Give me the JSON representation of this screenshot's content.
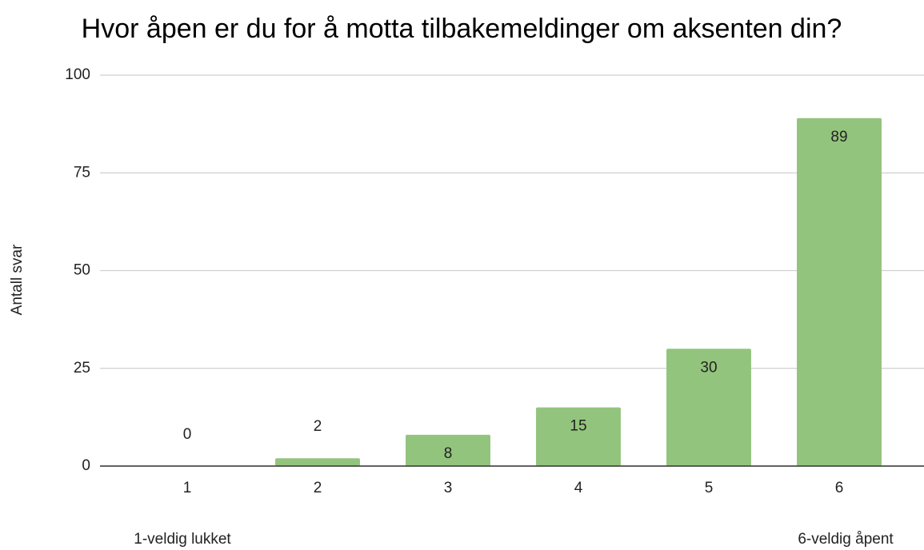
{
  "chart_data": {
    "type": "bar",
    "title": "Hvor åpen er du for å motta tilbakemeldinger om aksenten din?",
    "y_label": "Antall svar",
    "annotations": [
      "1-veldig lukket",
      "6-veldig åpent"
    ],
    "categories": [
      "1",
      "2",
      "3",
      "4",
      "5",
      "6"
    ],
    "values": [
      0,
      2,
      8,
      15,
      30,
      89
    ],
    "color": "#93c47d",
    "ylim": [
      0,
      100
    ],
    "yticks": [
      0,
      25,
      50,
      75,
      100
    ],
    "grid": true
  }
}
